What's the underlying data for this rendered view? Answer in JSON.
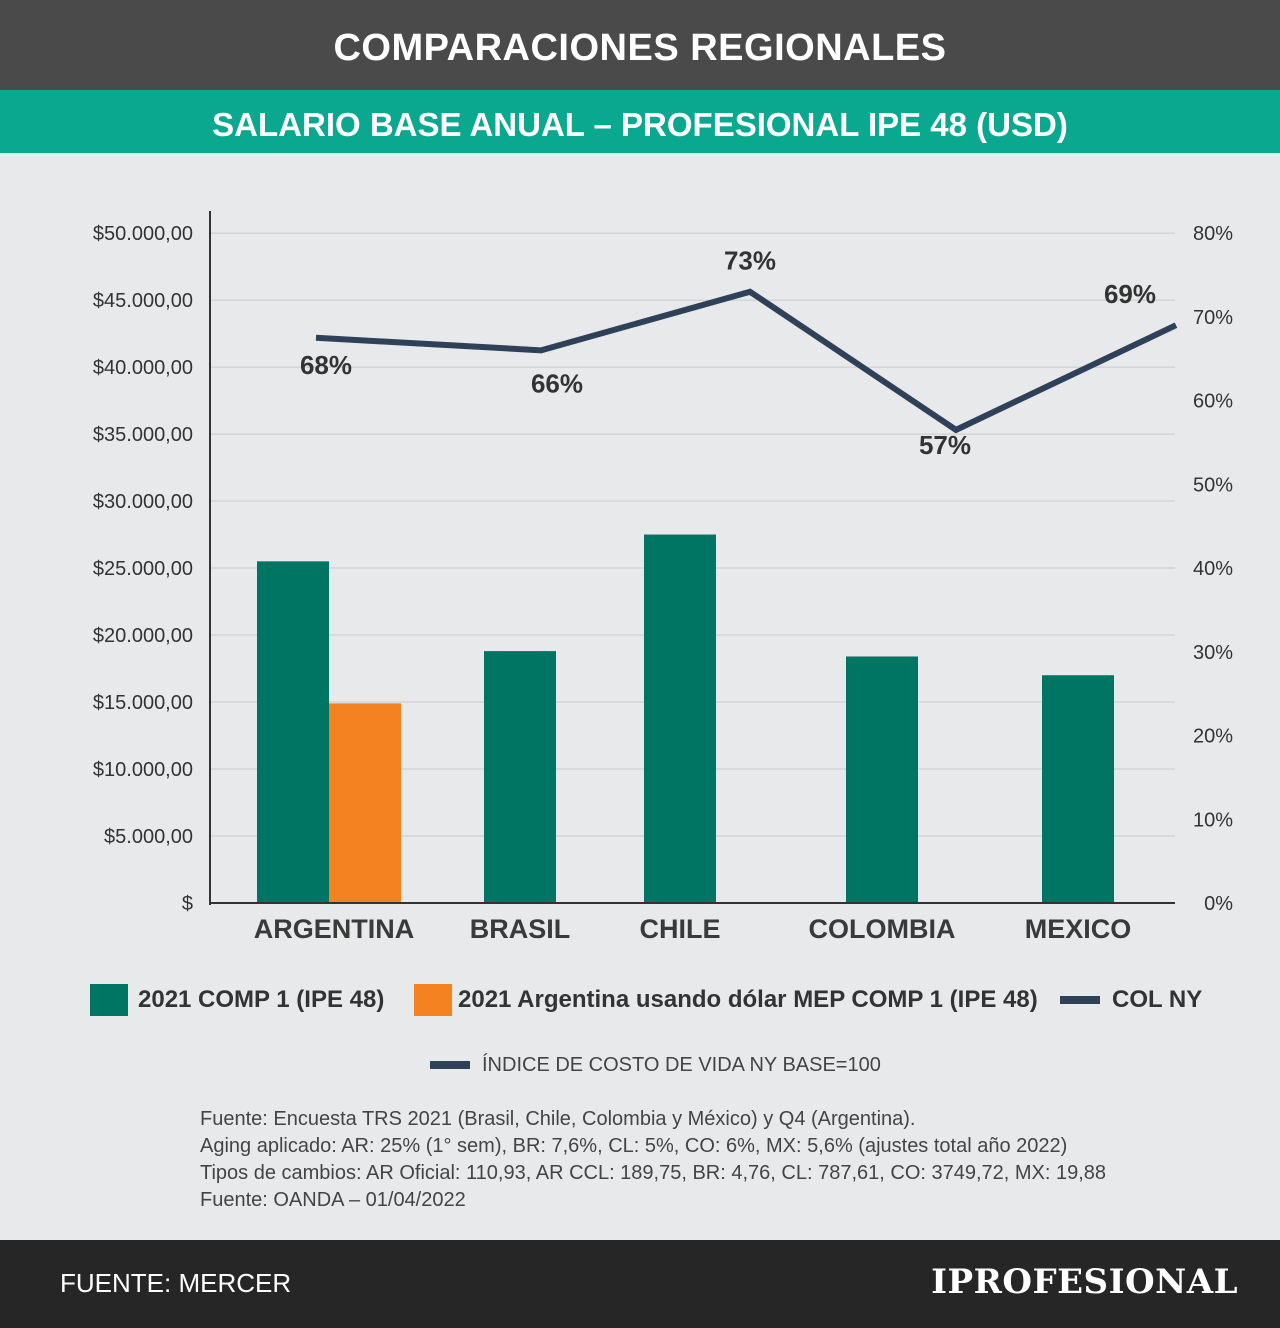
{
  "header": {
    "title": "COMPARACIONES REGIONALES",
    "subtitle": "SALARIO BASE ANUAL – PROFESIONAL IPE 48 (USD)"
  },
  "chart_data": {
    "type": "bar",
    "categories": [
      "ARGENTINA",
      "BRASIL",
      "CHILE",
      "COLOMBIA",
      "MEXICO"
    ],
    "y_ticks": [
      "$",
      "$5.000,00",
      "$10.000,00",
      "$15.000,00",
      "$20.000,00",
      "$25.000,00",
      "$30.000,00",
      "$35.000,00",
      "$40.000,00",
      "$45.000,00",
      "$50.000,00"
    ],
    "y2_ticks": [
      "0%",
      "10%",
      "20%",
      "30%",
      "40%",
      "50%",
      "60%",
      "70%",
      "80%"
    ],
    "ylim": [
      0,
      51500
    ],
    "y2lim": [
      0,
      82.4
    ],
    "grid": true,
    "series": [
      {
        "name": "2021 COMP 1 (IPE 48)",
        "type": "bar",
        "color": "#007563",
        "values": [
          25500,
          18800,
          27500,
          18400,
          17000
        ]
      },
      {
        "name": "2021 Argentina usando dólar MEP COMP 1 (IPE 48)",
        "type": "bar",
        "color": "#f58220",
        "values": [
          14900,
          null,
          null,
          null,
          null
        ]
      },
      {
        "name": "COL NY",
        "type": "line",
        "axis": "right",
        "color": "#2e4159",
        "values": [
          67.5,
          66,
          73,
          56.5,
          69
        ],
        "labels": [
          "68%",
          "66%",
          "73%",
          "57%",
          "69%"
        ]
      }
    ]
  },
  "legend": {
    "items": [
      {
        "label": "2021 COMP 1 (IPE 48)",
        "color": "#007563"
      },
      {
        "label": "2021 Argentina usando dólar MEP COMP 1 (IPE 48)",
        "color": "#f58220"
      },
      {
        "label": "COL NY",
        "color": "#2e4159"
      }
    ],
    "secondary": {
      "label": "ÍNDICE DE COSTO DE VIDA NY BASE=100",
      "color": "#2e4159"
    }
  },
  "notes": [
    "Fuente: Encuesta TRS 2021 (Brasil, Chile, Colombia y México) y Q4 (Argentina).",
    "Aging aplicado: AR: 25% (1° sem), BR: 7,6%, CL: 5%, CO: 6%, MX: 5,6% (ajustes total año 2022)",
    "Tipos de cambios: AR Oficial: 110,93, AR CCL: 189,75, BR: 4,76, CL: 787,61, CO: 3749,72, MX: 19,88",
    "Fuente: OANDA – 01/04/2022"
  ],
  "footer": {
    "source": "FUENTE: MERCER",
    "logo": "IPROFESIONAL"
  }
}
